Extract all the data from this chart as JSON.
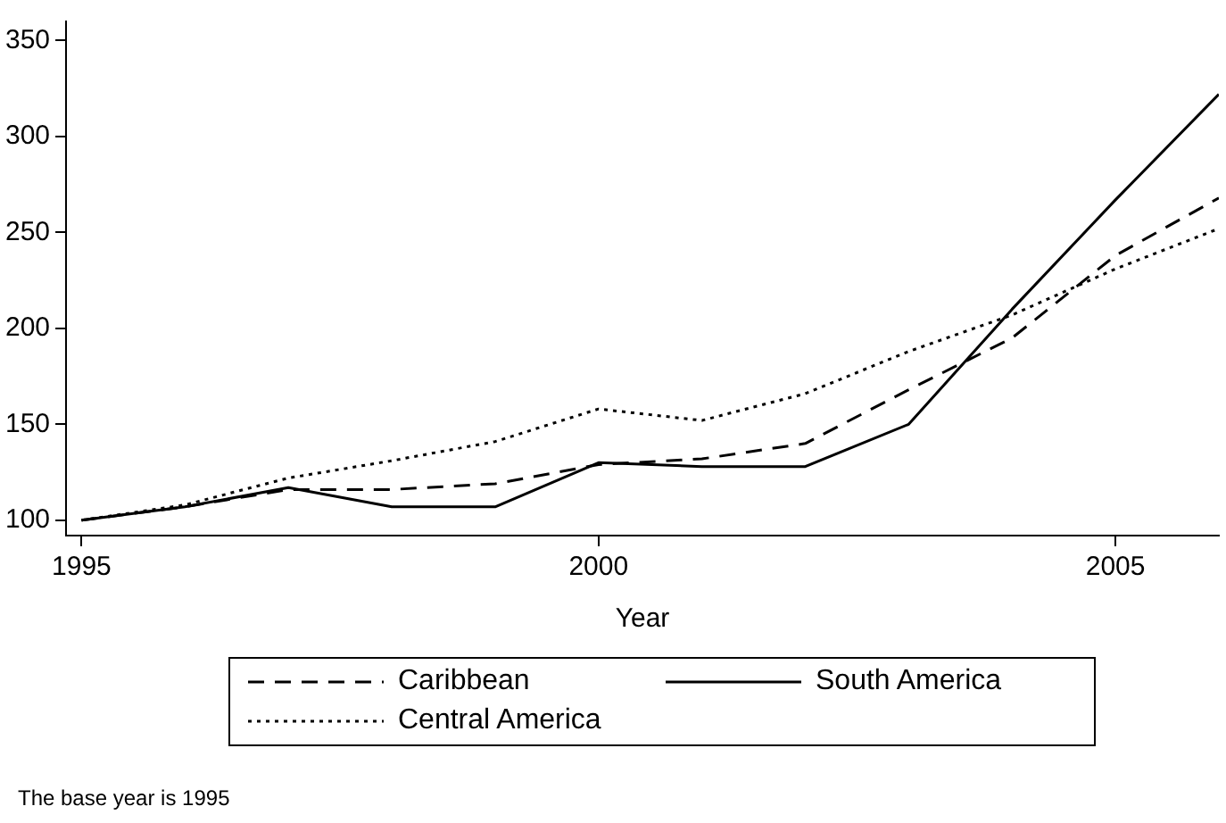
{
  "chart_data": {
    "type": "line",
    "xlabel": "Year",
    "x": [
      1995,
      1996,
      1997,
      1998,
      1999,
      2000,
      2001,
      2002,
      2003,
      2004,
      2005,
      2006
    ],
    "series": [
      {
        "name": "Caribbean",
        "color": "#000000",
        "line_style": "dashed",
        "values": [
          100,
          107,
          116,
          116,
          119,
          129,
          132,
          140,
          168,
          195,
          238,
          268
        ]
      },
      {
        "name": "South America",
        "color": "#000000",
        "line_style": "solid",
        "values": [
          100,
          107,
          117,
          107,
          107,
          130,
          128,
          128,
          150,
          210,
          267,
          322
        ]
      },
      {
        "name": "Central America",
        "color": "#000000",
        "line_style": "dotted",
        "values": [
          100,
          108,
          122,
          131,
          141,
          158,
          152,
          166,
          188,
          207,
          231,
          252
        ]
      }
    ],
    "xlim": [
      1994.85,
      2006
    ],
    "xticks": [
      1995,
      2000,
      2005
    ],
    "ylim": [
      92,
      360
    ],
    "yticks": [
      100,
      150,
      200,
      250,
      300,
      350
    ],
    "grid": false,
    "legend": "bottom",
    "marker": "none",
    "annotations": [
      "The base year is 1995"
    ]
  }
}
